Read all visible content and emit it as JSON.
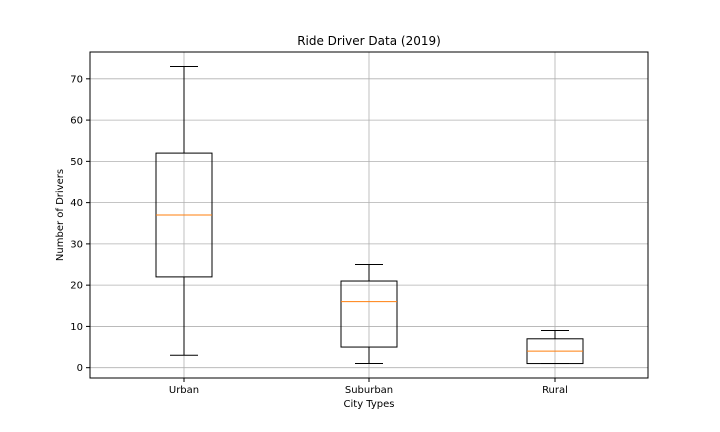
{
  "chart_data": {
    "type": "box",
    "title": "Ride Driver Data (2019)",
    "xlabel": "City Types",
    "ylabel": "Number of Drivers",
    "ylim": [
      -2.5,
      76.5
    ],
    "yticks": [
      0,
      10,
      20,
      30,
      40,
      50,
      60,
      70
    ],
    "grid": true,
    "categories": [
      "Urban",
      "Suburban",
      "Rural"
    ],
    "boxes": [
      {
        "category": "Urban",
        "whisker_low": 3,
        "q1": 22,
        "median": 37,
        "q3": 52,
        "whisker_high": 73
      },
      {
        "category": "Suburban",
        "whisker_low": 1,
        "q1": 5,
        "median": 16,
        "q3": 21,
        "whisker_high": 25
      },
      {
        "category": "Rural",
        "whisker_low": 1,
        "q1": 1,
        "median": 4,
        "q3": 7,
        "whisker_high": 9
      }
    ],
    "colors": {
      "box": "#000000",
      "median": "#ff7f0e",
      "grid": "#b0b0b0"
    }
  }
}
